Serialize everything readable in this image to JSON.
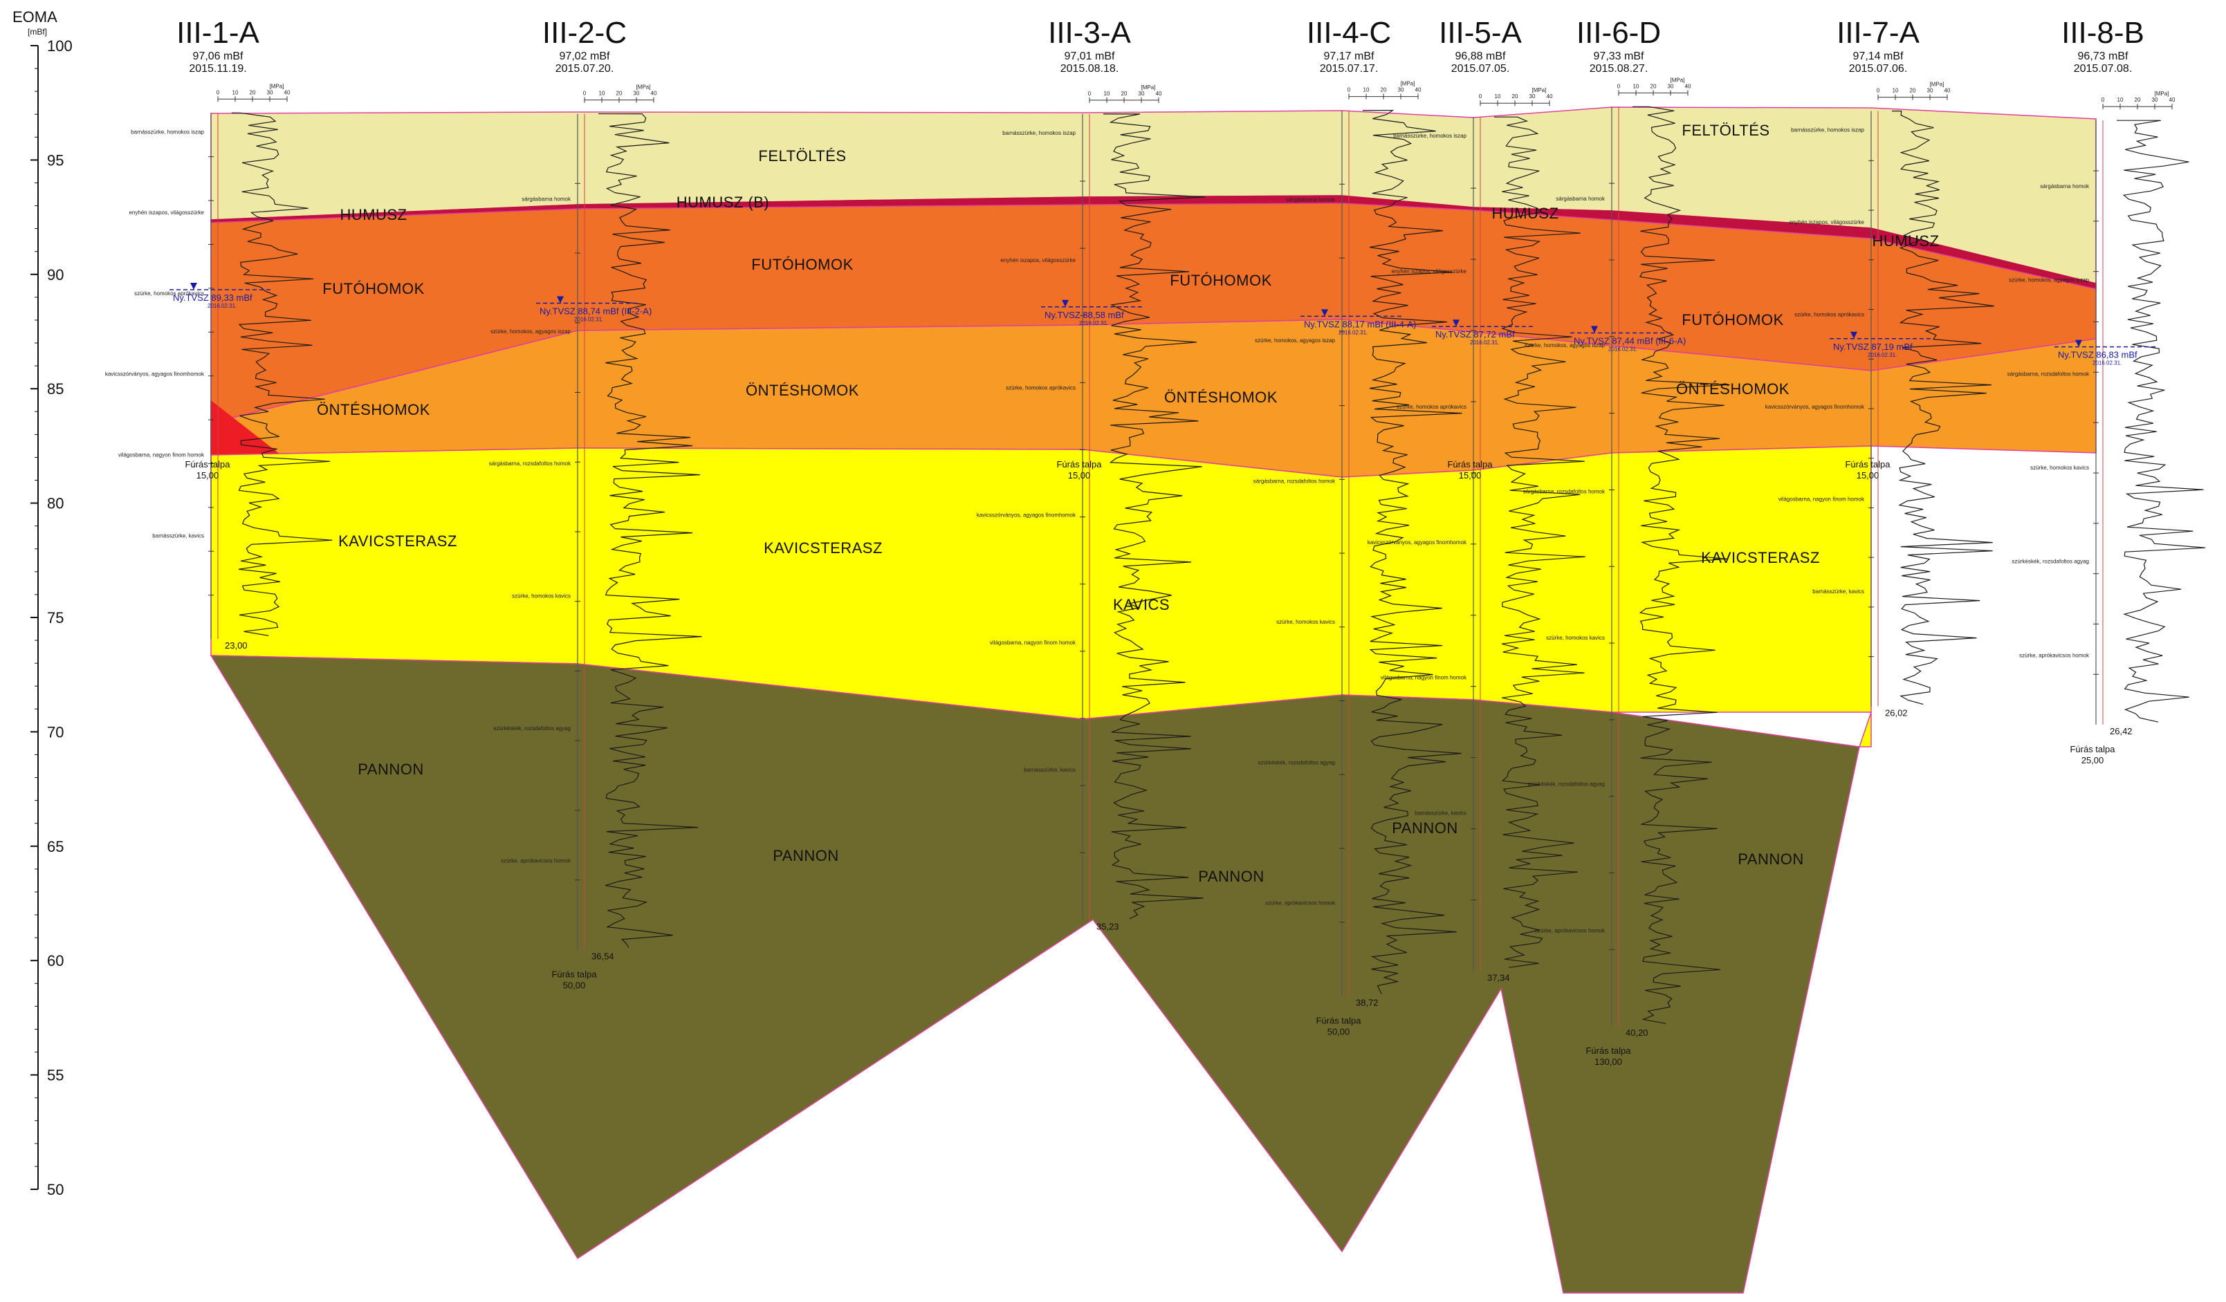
{
  "axis": {
    "title": "EOMA",
    "unit": "[mBf]",
    "range": [
      50,
      100
    ],
    "ticks": [
      100,
      95,
      90,
      85,
      80,
      75,
      70,
      65,
      60,
      55,
      50
    ]
  },
  "colors": {
    "feltoltes": "#eeeaa6",
    "humusz": "#c01040",
    "futohomok": "#f07028",
    "onteshomok": "#f79a26",
    "kavicsterasz": "#ffff00",
    "pannon": "#6e6a2e",
    "red_lens": "#ee1c24",
    "outline": "#e040a0",
    "water": "#1a1aa8"
  },
  "boreholes": [
    {
      "id": "III-1-A",
      "elevation": "97,06 mBf",
      "date": "2015.11.19.",
      "top": 97.06,
      "depth": 23.0,
      "depth_label": "23,00",
      "furas_talpa": "Fúrás talpa",
      "furas_value": "15,00",
      "water_label": "Ny.TVSZ 89,33 mBf",
      "water_level": 89.33,
      "water_date": "2016.02.31."
    },
    {
      "id": "III-2-C",
      "elevation": "97,02 mBf",
      "date": "2015.07.20.",
      "top": 97.02,
      "depth": 36.54,
      "depth_label": "36,54",
      "furas_talpa": "Fúrás talpa",
      "furas_value": "50,00",
      "water_label": "Ny.TVSZ 88,74 mBf (III-2-A)",
      "water_level": 88.74,
      "water_date": "2016.02.31."
    },
    {
      "id": "III-3-A",
      "elevation": "97,01 mBf",
      "date": "2015.08.18.",
      "top": 97.01,
      "depth": 35.23,
      "depth_label": "35,23",
      "furas_talpa": "Fúrás talpa",
      "furas_value": "15,00",
      "water_label": "Ny.TVSZ 88,58 mBf",
      "water_level": 88.58,
      "water_date": "2016.02.31."
    },
    {
      "id": "III-4-C",
      "elevation": "97,17 mBf",
      "date": "2015.07.17.",
      "top": 97.17,
      "depth": 38.72,
      "depth_label": "38,72",
      "furas_talpa": "Fúrás talpa",
      "furas_value": "50,00",
      "water_label": "Ny.TVSZ 88,17 mBf (III-4-A)",
      "water_level": 88.17,
      "water_date": "2016.02.31."
    },
    {
      "id": "III-5-A",
      "elevation": "96,88 mBf",
      "date": "2015.07.05.",
      "top": 96.88,
      "depth": 37.34,
      "depth_label": "37,34",
      "furas_talpa": "Fúrás talpa",
      "furas_value": "15,00",
      "water_label": "Ny.TVSZ 87,72 mBf",
      "water_level": 87.72,
      "water_date": "2016.02.31."
    },
    {
      "id": "III-6-D",
      "elevation": "97,33 mBf",
      "date": "2015.08.27.",
      "top": 97.33,
      "depth": 40.2,
      "depth_label": "40,20",
      "furas_talpa": "Fúrás talpa",
      "furas_value": "130,00",
      "water_label": "Ny.TVSZ 87,44 mBf (III-6-A)",
      "water_level": 87.44,
      "water_date": "2016.02.31."
    },
    {
      "id": "III-7-A",
      "elevation": "97,14 mBf",
      "date": "2015.07.06.",
      "top": 97.14,
      "depth": 26.02,
      "depth_label": "26,02",
      "furas_talpa": "Fúrás talpa",
      "furas_value": "15,00",
      "water_label": "Ny.TVSZ 87,19 mBf",
      "water_level": 87.19,
      "water_date": "2016.02.31."
    },
    {
      "id": "III-8-B",
      "elevation": "96,73 mBf",
      "date": "2015.07.08.",
      "top": 96.73,
      "depth": 26.42,
      "depth_label": "26,42",
      "furas_talpa": "Fúrás talpa",
      "furas_value": "25,00",
      "water_label": "Ny.TVSZ 86,83 mBf",
      "water_level": 86.83,
      "water_date": "2016.02.31."
    }
  ],
  "layers": {
    "feltoltes_label": "FELTÖLTÉS",
    "humusz_label": "HUMUSZ",
    "humusz_b_label": "HUMUSZ (B)",
    "futohomok_label": "FUTÓHOMOK",
    "onteshomok_label": "ÖNTÉSHOMOK",
    "kavicsterasz_label": "KAVICSTERASZ",
    "kavics_label": "KAVICS",
    "pannon_label": "PANNON"
  },
  "scale_ticks": [
    "0",
    "10",
    "20",
    "30",
    "40"
  ],
  "scale_unit": "[MPa]",
  "descriptions": [
    "barnásszürke, homokos iszap",
    "sárgásbarna homok",
    "enyhén iszapos, világosszürke",
    "szürke, homokos, agyagos iszap",
    "szürke, homokos aprókavics",
    "sárgásbarna, rozsdafoltos homok",
    "kavicsszórványos, agyagos finomhomok",
    "szürke, homokos kavics",
    "világosbarna, nagyon finom homok",
    "szürkéskék, rozsdafoltos agyag",
    "barnásszürke, kavics",
    "szürke, aprókavicsos homok"
  ]
}
